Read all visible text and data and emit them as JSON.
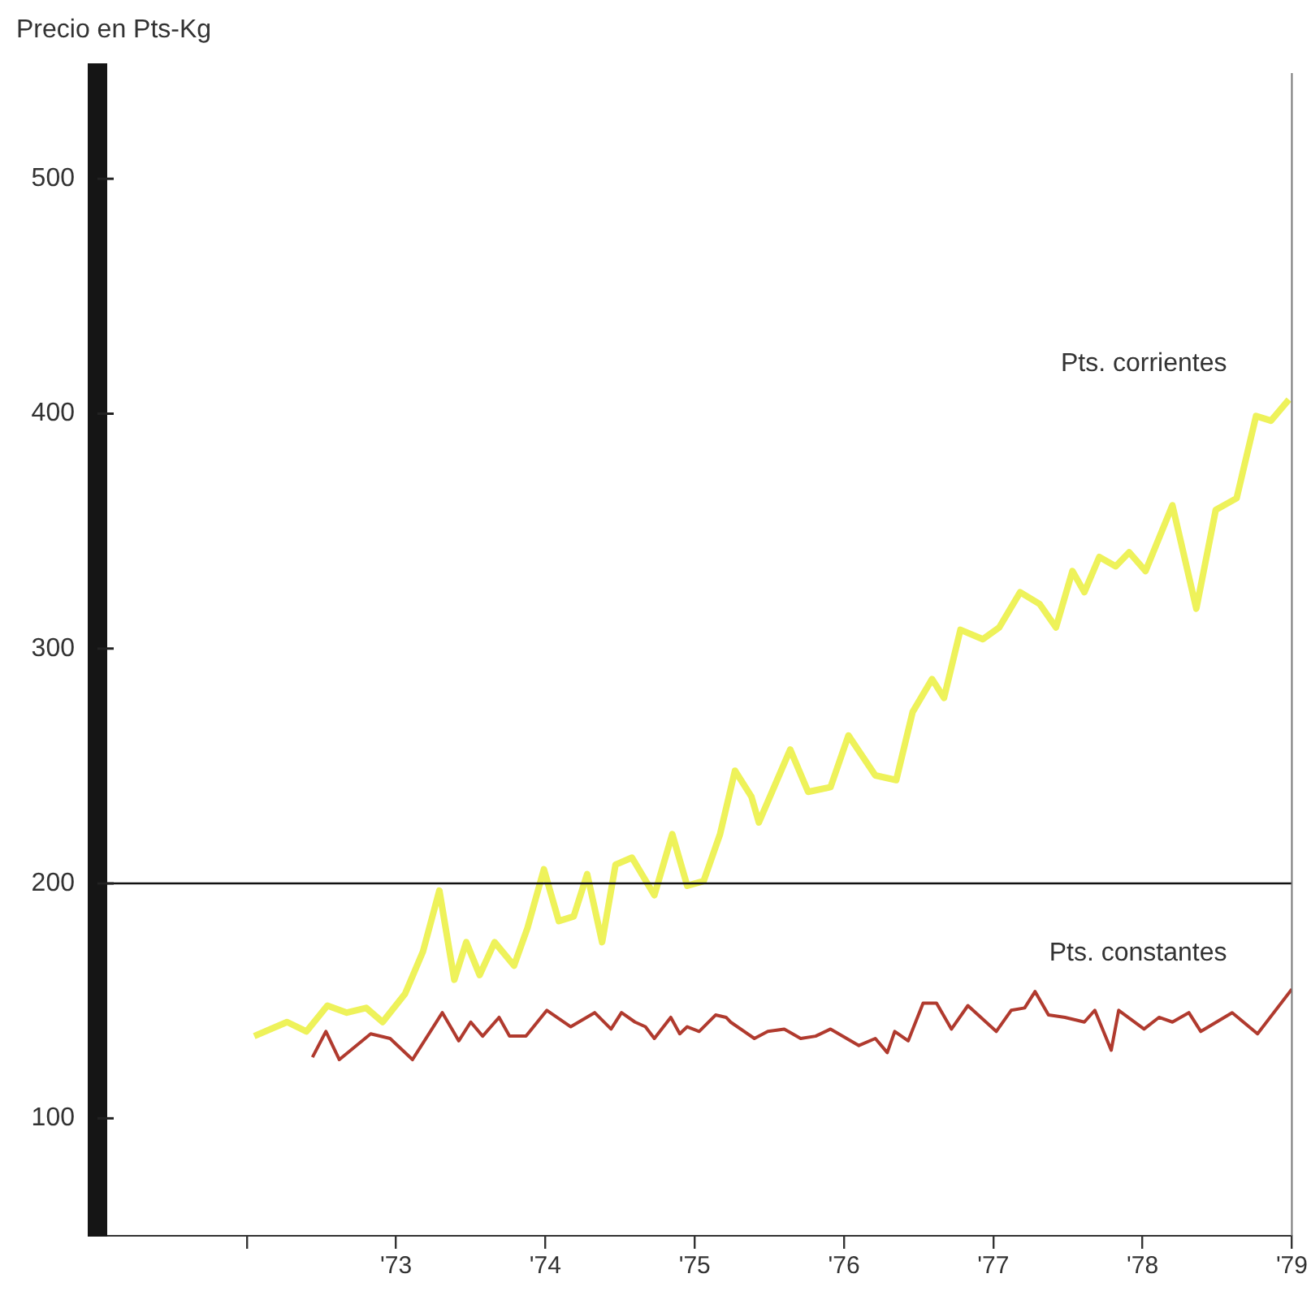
{
  "chart_data": {
    "type": "line",
    "ylabel": "Precio en Pts-Kg",
    "xlim": [
      1971,
      1979
    ],
    "ylim": [
      50,
      545
    ],
    "xticks": [
      {
        "value": 1972,
        "label": null
      },
      {
        "value": 1973,
        "label": "'73"
      },
      {
        "value": 1974,
        "label": "'74"
      },
      {
        "value": 1975,
        "label": "'75"
      },
      {
        "value": 1976,
        "label": "'76"
      },
      {
        "value": 1977,
        "label": "'77"
      },
      {
        "value": 1978,
        "label": "'78"
      },
      {
        "value": 1979,
        "label": "'79"
      }
    ],
    "yticks": [
      100,
      200,
      300,
      400,
      500
    ],
    "grid": false,
    "legend": false,
    "marker": "none",
    "line_style": "solid",
    "ref_lines": [
      {
        "axis": "y",
        "value": 200,
        "color": "#111111"
      }
    ],
    "series": [
      {
        "name": "Pts. corrientes",
        "color": "#eef25a",
        "x": [
          1972.05,
          1972.27,
          1972.4,
          1972.54,
          1972.67,
          1972.8,
          1972.91,
          1973.06,
          1973.18,
          1973.29,
          1973.39,
          1973.47,
          1973.56,
          1973.66,
          1973.79,
          1973.88,
          1973.99,
          1974.09,
          1974.19,
          1974.28,
          1974.38,
          1974.47,
          1974.58,
          1974.73,
          1974.85,
          1974.95,
          1975.06,
          1975.17,
          1975.27,
          1975.38,
          1975.43,
          1975.64,
          1975.76,
          1975.91,
          1976.03,
          1976.21,
          1976.35,
          1976.46,
          1976.59,
          1976.67,
          1976.78,
          1976.93,
          1977.04,
          1977.18,
          1977.31,
          1977.42,
          1977.53,
          1977.61,
          1977.71,
          1977.82,
          1977.91,
          1978.02,
          1978.2,
          1978.36,
          1978.49,
          1978.63,
          1978.76,
          1978.86,
          1978.98
        ],
        "values": [
          135,
          141,
          137,
          148,
          145,
          147,
          141,
          153,
          171,
          197,
          159,
          175,
          161,
          175,
          165,
          181,
          206,
          184,
          186,
          204,
          175,
          208,
          211,
          195,
          221,
          199,
          201,
          221,
          248,
          237,
          226,
          257,
          239,
          241,
          263,
          246,
          244,
          273,
          287,
          279,
          308,
          304,
          309,
          324,
          319,
          309,
          333,
          324,
          339,
          335,
          341,
          333,
          361,
          317,
          359,
          364,
          399,
          397,
          406
        ]
      },
      {
        "name": "Pts. constantes",
        "color": "#b03a2e",
        "x": [
          1972.44,
          1972.53,
          1972.62,
          1972.83,
          1972.96,
          1973.11,
          1973.31,
          1973.42,
          1973.5,
          1973.58,
          1973.69,
          1973.76,
          1973.87,
          1974.01,
          1974.17,
          1974.33,
          1974.44,
          1974.51,
          1974.6,
          1974.67,
          1974.73,
          1974.84,
          1974.9,
          1974.95,
          1975.03,
          1975.14,
          1975.21,
          1975.24,
          1975.4,
          1975.49,
          1975.6,
          1975.71,
          1975.81,
          1975.91,
          1976.1,
          1976.21,
          1976.29,
          1976.34,
          1976.43,
          1976.53,
          1976.62,
          1976.72,
          1976.83,
          1977.02,
          1977.12,
          1977.21,
          1977.28,
          1977.37,
          1977.48,
          1977.61,
          1977.68,
          1977.79,
          1977.84,
          1978.01,
          1978.11,
          1978.2,
          1978.31,
          1978.39,
          1978.6,
          1978.77,
          1979.0
        ],
        "values": [
          126,
          137,
          125,
          136,
          134,
          125,
          145,
          133,
          141,
          135,
          143,
          135,
          135,
          146,
          139,
          145,
          138,
          145,
          141,
          139,
          134,
          143,
          136,
          139,
          137,
          144,
          143,
          141,
          134,
          137,
          138,
          134,
          135,
          138,
          131,
          134,
          128,
          137,
          133,
          149,
          149,
          138,
          148,
          137,
          146,
          147,
          154,
          144,
          143,
          141,
          146,
          129,
          146,
          138,
          143,
          141,
          145,
          137,
          145,
          136,
          155
        ]
      }
    ]
  }
}
